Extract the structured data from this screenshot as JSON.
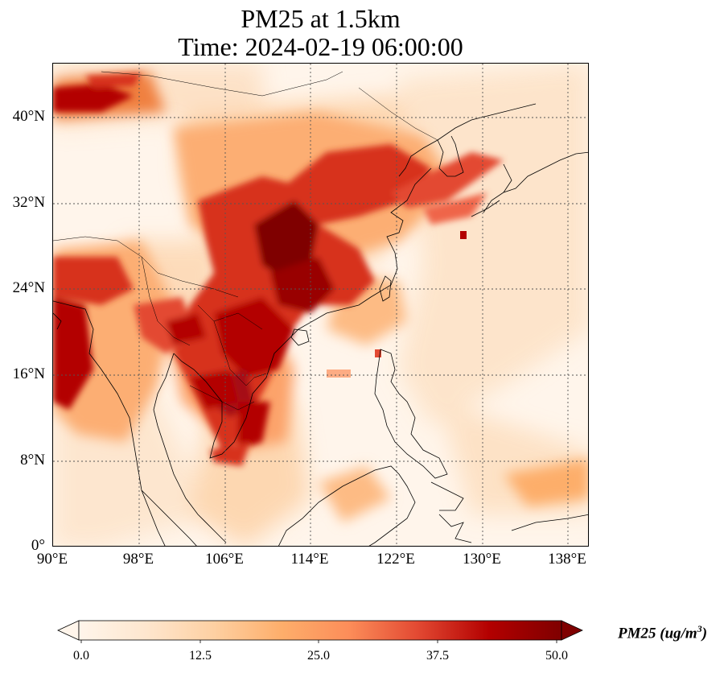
{
  "title_line1": "PM25 at 1.5km",
  "title_line2": "Time: 2024-02-19 06:00:00",
  "lat_labels": [
    "40°N",
    "32°N",
    "24°N",
    "16°N",
    "8°N",
    "0°"
  ],
  "lon_labels": [
    "90°E",
    "98°E",
    "106°E",
    "114°E",
    "122°E",
    "130°E",
    "138°E"
  ],
  "colorbar": {
    "label": "PM25 (ug/m",
    "label_sup": "3",
    "label_close": ")",
    "ticks": [
      "0.0",
      "12.5",
      "25.0",
      "37.5",
      "50.0"
    ],
    "min": 0,
    "max": 50,
    "cmap": "OrRd",
    "colors": [
      "#fff5eb",
      "#fee6ce",
      "#fdd0a2",
      "#fdae6b",
      "#fc8d59",
      "#e34a33",
      "#b30000",
      "#7f0000"
    ]
  },
  "map": {
    "lon_range": [
      90,
      140
    ],
    "lat_range": [
      0,
      45
    ],
    "gridlines": true
  }
}
